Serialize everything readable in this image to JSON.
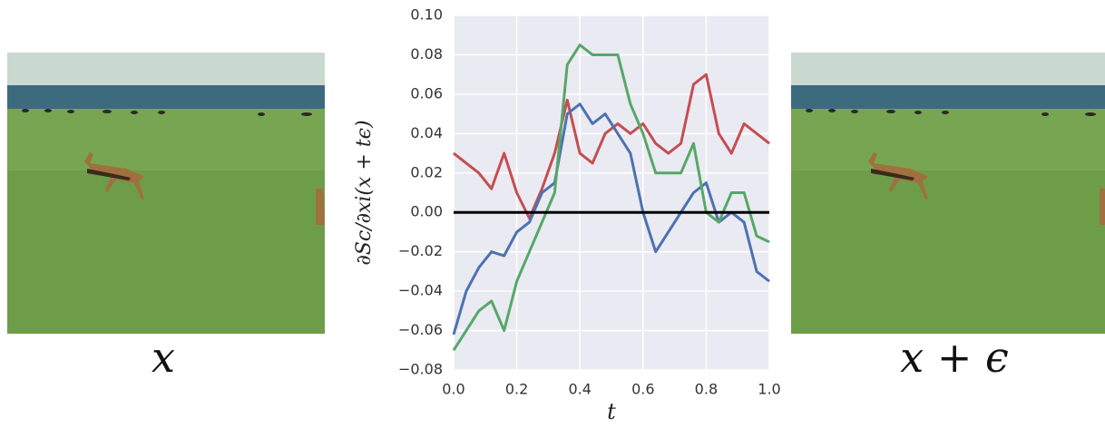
{
  "captions": {
    "left": "x",
    "right": "x + ϵ"
  },
  "chart_data": {
    "type": "line",
    "ylabel": "∂Sc/∂xi(x + tϵ)",
    "xlabel": "t",
    "x": [
      0,
      0.04,
      0.08,
      0.12,
      0.16,
      0.2,
      0.24,
      0.28,
      0.32,
      0.36,
      0.4,
      0.44,
      0.48,
      0.52,
      0.56,
      0.6,
      0.64,
      0.68,
      0.72,
      0.76,
      0.8,
      0.84,
      0.88,
      0.92,
      0.96,
      1.0
    ],
    "series": [
      {
        "color": "#c44e52",
        "values": [
          0.03,
          0.025,
          0.02,
          0.012,
          0.03,
          0.01,
          -0.003,
          0.012,
          0.03,
          0.057,
          0.03,
          0.025,
          0.04,
          0.045,
          0.04,
          0.045,
          0.035,
          0.03,
          0.035,
          0.065,
          0.07,
          0.04,
          0.03,
          0.045,
          0.04,
          0.035
        ]
      },
      {
        "color": "#4c72b0",
        "values": [
          -0.062,
          -0.04,
          -0.028,
          -0.02,
          -0.022,
          -0.01,
          -0.005,
          0.01,
          0.015,
          0.05,
          0.055,
          0.045,
          0.05,
          0.04,
          0.03,
          0.0,
          -0.02,
          -0.01,
          0.0,
          0.01,
          0.015,
          -0.005,
          0.0,
          -0.005,
          -0.03,
          -0.035
        ]
      },
      {
        "color": "#55a868",
        "values": [
          -0.07,
          -0.06,
          -0.05,
          -0.045,
          -0.06,
          -0.035,
          -0.02,
          -0.005,
          0.01,
          0.075,
          0.085,
          0.08,
          0.08,
          0.08,
          0.055,
          0.04,
          0.02,
          0.02,
          0.02,
          0.035,
          0.0,
          -0.005,
          0.01,
          0.01,
          -0.012,
          -0.015
        ]
      }
    ],
    "reference_line": 0,
    "xlim": [
      0,
      1.0
    ],
    "ylim": [
      -0.08,
      0.1
    ],
    "xticks": [
      {
        "value": 0,
        "label": "0.0"
      },
      0.2,
      0.4,
      0.6,
      0.8,
      {
        "value": 1.0,
        "label": "1.0"
      }
    ],
    "yticks": [
      {
        "value": -0.08,
        "label": "−0.08"
      },
      {
        "value": -0.06,
        "label": "−0.06"
      },
      {
        "value": -0.04,
        "label": "−0.04"
      },
      {
        "value": -0.02,
        "label": "−0.02"
      },
      {
        "value": 0,
        "label": "0.00"
      },
      0.02,
      0.04,
      0.06,
      0.08,
      {
        "value": 0.1,
        "label": "0.10"
      }
    ],
    "grid": true
  }
}
